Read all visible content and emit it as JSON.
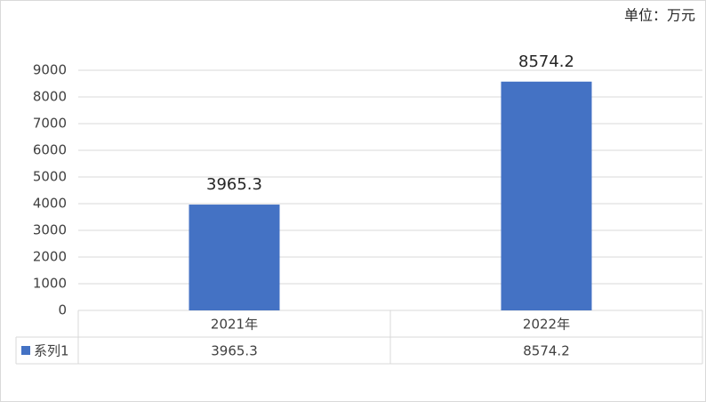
{
  "chart_data": {
    "type": "bar",
    "unit_note": "单位：万元",
    "categories": [
      "2021年",
      "2022年"
    ],
    "series": [
      {
        "name": "系列1",
        "color": "#4472c4",
        "values": [
          3965.3,
          8574.2
        ]
      }
    ],
    "ylim": [
      0,
      9000
    ],
    "yticks": [
      0,
      1000,
      2000,
      3000,
      4000,
      5000,
      6000,
      7000,
      8000,
      9000
    ],
    "grid": true,
    "data_table": true
  }
}
